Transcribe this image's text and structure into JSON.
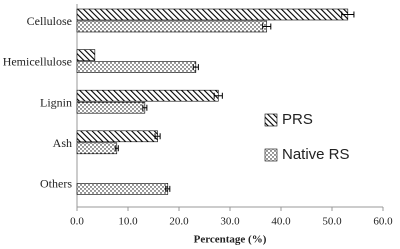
{
  "chart_data": {
    "type": "hbar",
    "x_label": "Percentage (%)",
    "categories": [
      "Cellulose",
      "Hemicellulose",
      "Lignin",
      "Ash",
      "Others"
    ],
    "series": [
      {
        "name": "PRS",
        "color": "#000000",
        "pattern": "hatch",
        "values": [
          53.1,
          3.5,
          27.7,
          15.8,
          null
        ],
        "errors": [
          1.2,
          null,
          0.8,
          0.5,
          null
        ]
      },
      {
        "name": "Native RS",
        "color": "#000000",
        "pattern": "dots",
        "values": [
          37.2,
          23.3,
          13.3,
          7.8,
          17.8
        ],
        "errors": [
          0.8,
          0.5,
          0.4,
          0.3,
          0.4
        ]
      }
    ],
    "xlim": [
      0,
      60
    ],
    "xticks": [
      {
        "value": 0,
        "label": "0.0"
      },
      {
        "value": 10,
        "label": "10.0"
      },
      {
        "value": 20,
        "label": "20.0"
      },
      {
        "value": 30,
        "label": "30.0"
      },
      {
        "value": 40,
        "label": "40.0"
      },
      {
        "value": 50,
        "label": "50.0"
      },
      {
        "value": 60,
        "label": "60.0"
      }
    ]
  }
}
